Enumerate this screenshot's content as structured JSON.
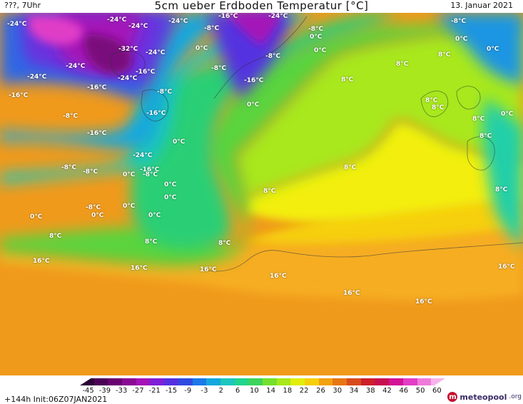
{
  "header": {
    "left_text": "???, 7Uhr",
    "title": "5cm ueber Erdboden Temperatur [°C]",
    "date": "13. Januar 2021"
  },
  "map": {
    "labels": [
      "-24°C",
      "-24°C",
      "-24°C",
      "-24°C",
      "-24°C",
      "-24°C",
      "-24°C",
      "-24°C",
      "-24°C",
      "-32°C",
      "-24°C",
      "-16°C",
      "-16°C",
      "-16°C",
      "-16°C",
      "-16°C",
      "-16°C",
      "-16°C",
      "-16°C",
      "-8°C",
      "-8°C",
      "-8°C",
      "-8°C",
      "-8°C",
      "-8°C",
      "-8°C",
      "-8°C",
      "-8°C",
      "-8°C",
      "-8°C",
      "0°C",
      "0°C",
      "0°C",
      "0°C",
      "0°C",
      "0°C",
      "0°C",
      "0°C",
      "0°C",
      "0°C",
      "0°C",
      "0°C",
      "0°C",
      "0°C",
      "0°C",
      "8°C",
      "8°C",
      "8°C",
      "8°C",
      "8°C",
      "8°C",
      "8°C",
      "8°C",
      "8°C",
      "8°C",
      "8°C",
      "8°C",
      "8°C",
      "16°C",
      "16°C",
      "16°C",
      "16°C",
      "16°C",
      "16°C",
      "16°C"
    ]
  },
  "legend": {
    "ticks": [
      "-45",
      "-39",
      "-33",
      "-27",
      "-21",
      "-15",
      "-9",
      "-3",
      "2",
      "6",
      "10",
      "14",
      "18",
      "22",
      "26",
      "30",
      "34",
      "38",
      "42",
      "46",
      "50",
      "60"
    ],
    "colors": [
      "#2c0036",
      "#4b0055",
      "#6a006f",
      "#8a0a93",
      "#a414b8",
      "#7f1fd8",
      "#5530e0",
      "#2f4ae0",
      "#1c79e8",
      "#13a8dd",
      "#1cc7be",
      "#22d58c",
      "#3ed35a",
      "#74e02c",
      "#a8e81a",
      "#e2ed0b",
      "#f6cf07",
      "#f3a10d",
      "#e77612",
      "#d84a1d",
      "#cc1f2b",
      "#c70f4f",
      "#d21495",
      "#e23dc4",
      "#ef7ad9",
      "#f7b3ea"
    ],
    "run_info": "+144h Init:06Z07JAN2021"
  },
  "branding": {
    "logo_letter": "m",
    "name": "meteopool",
    "tld": ".org"
  }
}
